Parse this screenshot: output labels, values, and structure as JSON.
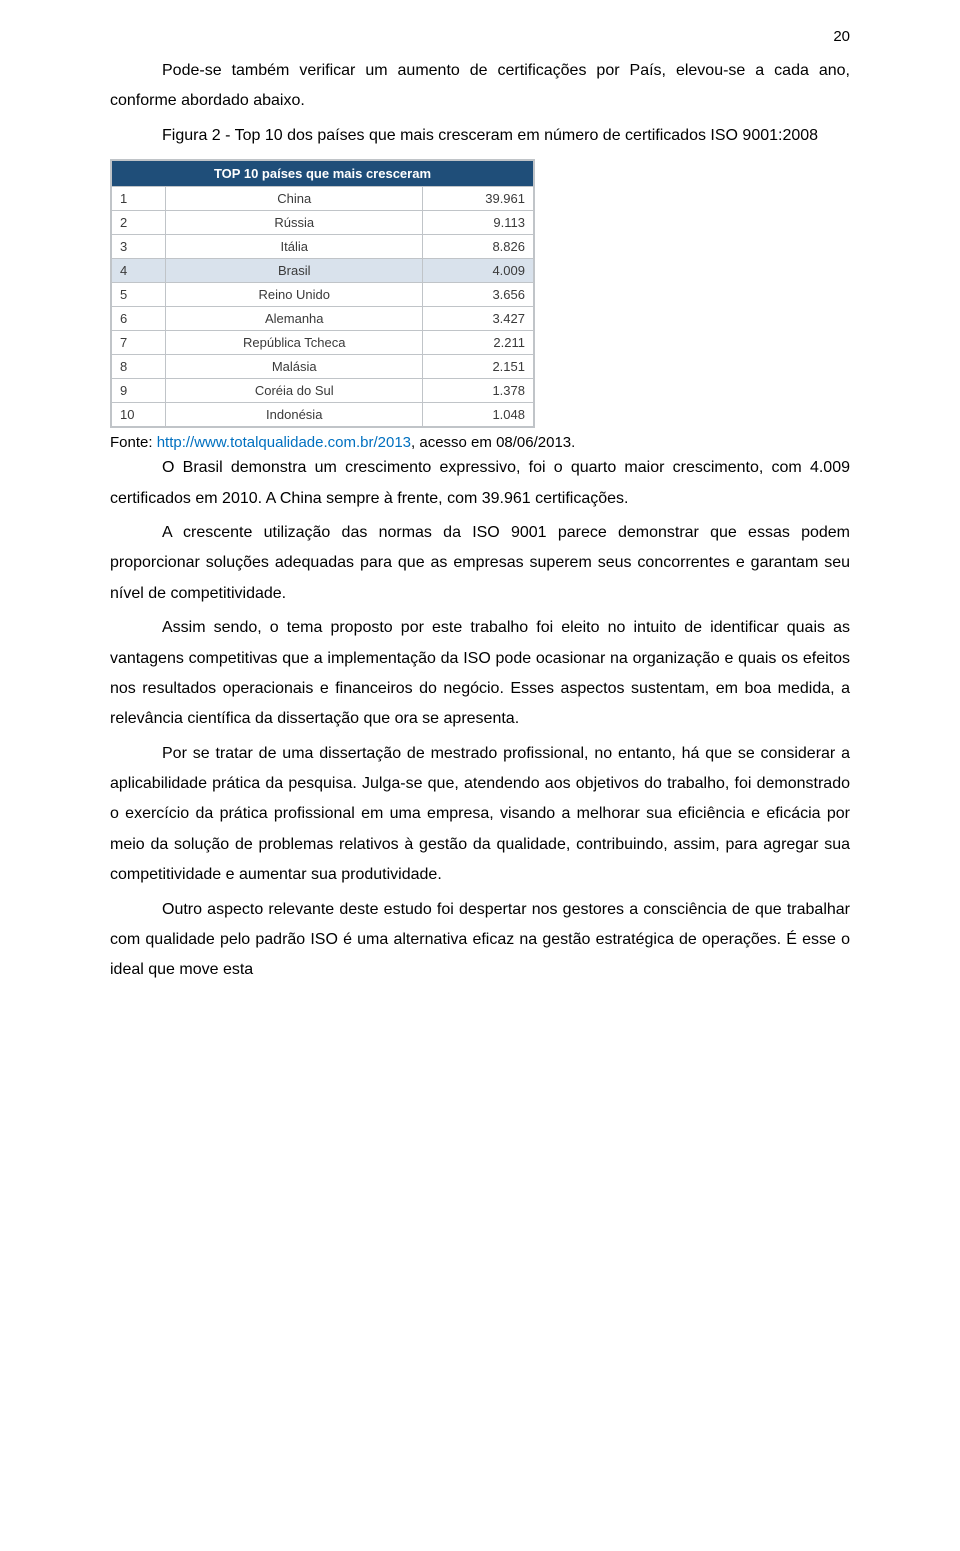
{
  "page_number": "20",
  "paragraphs": {
    "p1": "Pode-se também verificar um aumento de certificações por País, elevou-se a cada ano, conforme abordado abaixo.",
    "p2": "Figura 2 - Top 10 dos países que mais cresceram em número de certificados ISO 9001:2008",
    "p3": "O Brasil demonstra um crescimento expressivo, foi o quarto maior crescimento, com 4.009 certificados em 2010. A China sempre à frente, com 39.961 certificações.",
    "p4": "A crescente utilização das normas da ISO 9001 parece demonstrar que essas podem proporcionar soluções adequadas para que as empresas superem seus concorrentes e garantam seu nível de competitividade.",
    "p5": "Assim sendo, o tema proposto por este trabalho foi eleito no intuito de identificar quais as vantagens competitivas que a implementação da ISO pode ocasionar na organização e quais os efeitos nos resultados operacionais e financeiros do negócio. Esses aspectos sustentam, em boa medida, a relevância científica da dissertação que ora se apresenta.",
    "p6": "Por se tratar de uma dissertação de mestrado profissional, no entanto, há que se considerar a aplicabilidade prática da pesquisa. Julga-se que, atendendo aos objetivos do trabalho, foi demonstrado o exercício da prática profissional em uma empresa, visando a melhorar sua eficiência e eficácia por meio da solução de problemas relativos à gestão da qualidade, contribuindo, assim, para agregar sua competitividade e aumentar sua produtividade.",
    "p7": "Outro aspecto relevante deste estudo foi despertar nos gestores a consciência de que trabalhar com qualidade pelo padrão ISO é uma alternativa eficaz na gestão estratégica de operações. É esse o ideal que move esta"
  },
  "source": {
    "label": "Fonte: ",
    "link_text": "http://www.totalqualidade.com.br/2013",
    "rest": ", acesso em 08/06/2013."
  },
  "table": {
    "type": "table",
    "header_text": "TOP 10 países que mais cresceram",
    "header_bg": "#1f4e79",
    "header_fg": "#ffffff",
    "border_color": "#c0c4c8",
    "cell_fg": "#3a3a3a",
    "highlight_bg": "#d9e2ec",
    "highlight_row_index": 3,
    "columns": [
      "rank",
      "country",
      "value"
    ],
    "rows": [
      {
        "rank": "1",
        "country": "China",
        "value": "39.961"
      },
      {
        "rank": "2",
        "country": "Rússia",
        "value": "9.113"
      },
      {
        "rank": "3",
        "country": "Itália",
        "value": "8.826"
      },
      {
        "rank": "4",
        "country": "Brasil",
        "value": "4.009"
      },
      {
        "rank": "5",
        "country": "Reino Unido",
        "value": "3.656"
      },
      {
        "rank": "6",
        "country": "Alemanha",
        "value": "3.427"
      },
      {
        "rank": "7",
        "country": "República Tcheca",
        "value": "2.211"
      },
      {
        "rank": "8",
        "country": "Malásia",
        "value": "2.151"
      },
      {
        "rank": "9",
        "country": "Coréia do Sul",
        "value": "1.378"
      },
      {
        "rank": "10",
        "country": "Indonésia",
        "value": "1.048"
      }
    ]
  }
}
